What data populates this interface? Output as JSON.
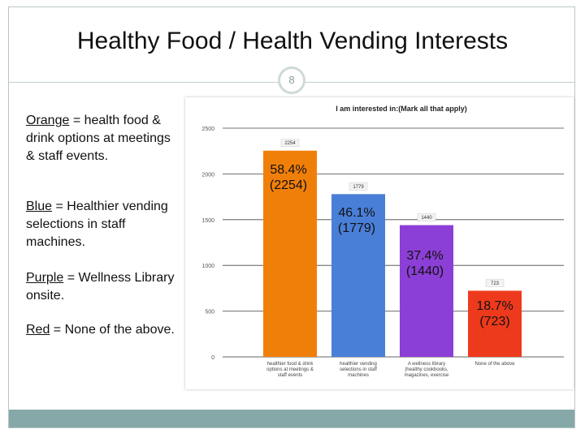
{
  "slide": {
    "title": "Healthy Food / Health Vending Interests",
    "page_number": "8"
  },
  "legend": [
    {
      "color_word": "Orange",
      "text": " = health food & drink options at meetings & staff events."
    },
    {
      "color_word": "Blue",
      "text": " = Healthier vending selections in staff machines."
    },
    {
      "color_word": "Purple",
      "text": " = Wellness Library onsite."
    },
    {
      "color_word": "Red",
      "text": " = None of the above."
    }
  ],
  "colors": {
    "frame_band": "#87a8a8",
    "orange": "#f07f0a",
    "blue": "#4a7fd8",
    "purple": "#8c3fd6",
    "red": "#ee3a1c"
  },
  "chart_data": {
    "type": "bar",
    "title": "I am interested in:(Mark all that apply)",
    "categories": [
      "healthier food & drink options at meetings & staff events",
      "healthier vending selections in staff machines",
      "A wellness library (healthy cookbooks, magazines, exercise DVD's, etc.)",
      "None of the above"
    ],
    "values": [
      2254,
      1779,
      1440,
      723
    ],
    "value_labels": [
      "2254",
      "1779",
      "1440",
      "723"
    ],
    "annotations": [
      "58.4%\n(2254)",
      "46.1%\n(1779)",
      "37.4%\n(1440)",
      "18.7%\n(723)"
    ],
    "bar_colors": [
      "#f07f0a",
      "#4a7fd8",
      "#8c3fd6",
      "#ee3a1c"
    ],
    "yticks": [
      0,
      500,
      1000,
      1500,
      2000,
      2500
    ],
    "ylim": [
      0,
      2500
    ],
    "grid": true
  }
}
